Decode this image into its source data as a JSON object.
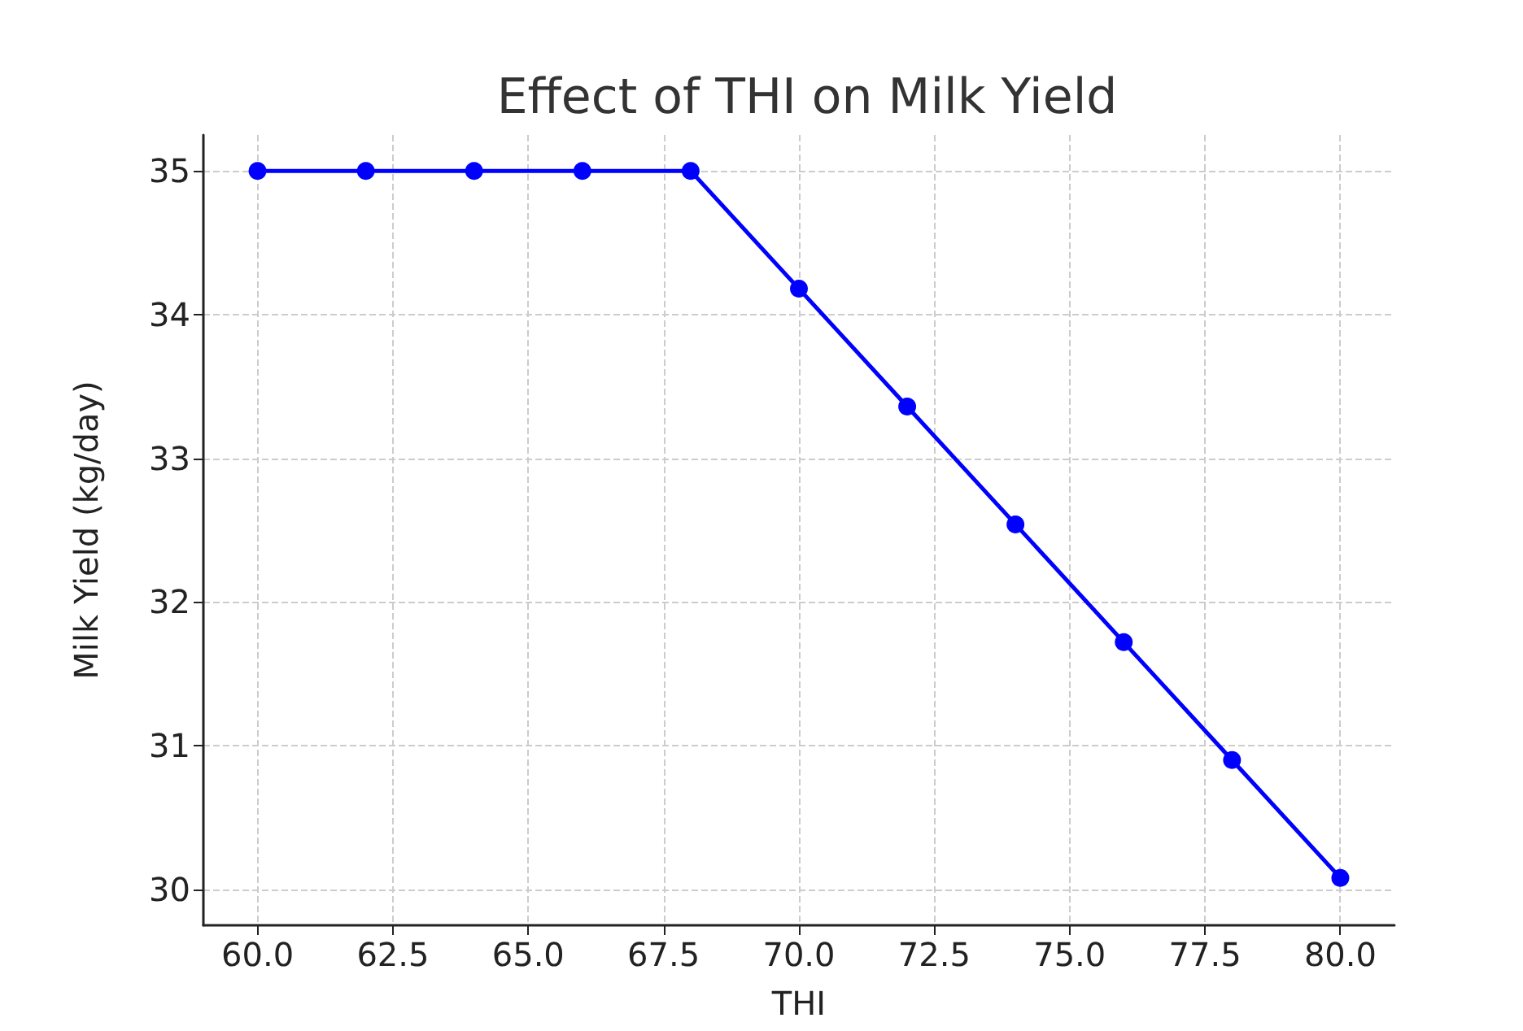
{
  "chart_data": {
    "type": "line",
    "title": "Effect of THI on Milk Yield",
    "xlabel": "THI",
    "ylabel": "Milk Yield (kg/day)",
    "x": [
      60,
      62,
      64,
      66,
      68,
      70,
      72,
      74,
      76,
      78,
      80
    ],
    "series": [
      {
        "color": "#0000ff",
        "values": [
          35,
          35,
          35,
          35,
          35,
          34.18,
          33.36,
          32.54,
          31.72,
          30.9,
          30.08
        ]
      }
    ],
    "xlim": [
      59,
      81
    ],
    "ylim": [
      29.75,
      35.25
    ],
    "xticks": [
      {
        "value": 60,
        "label": "60.0"
      },
      {
        "value": 62.5,
        "label": "62.5"
      },
      {
        "value": 65,
        "label": "65.0"
      },
      {
        "value": 67.5,
        "label": "67.5"
      },
      {
        "value": 70,
        "label": "70.0"
      },
      {
        "value": 72.5,
        "label": "72.5"
      },
      {
        "value": 75,
        "label": "75.0"
      },
      {
        "value": 77.5,
        "label": "77.5"
      },
      {
        "value": 80,
        "label": "80.0"
      }
    ],
    "yticks": [
      30,
      31,
      32,
      33,
      34,
      35
    ],
    "grid": true,
    "marker": "circle",
    "line_style": "solid"
  }
}
